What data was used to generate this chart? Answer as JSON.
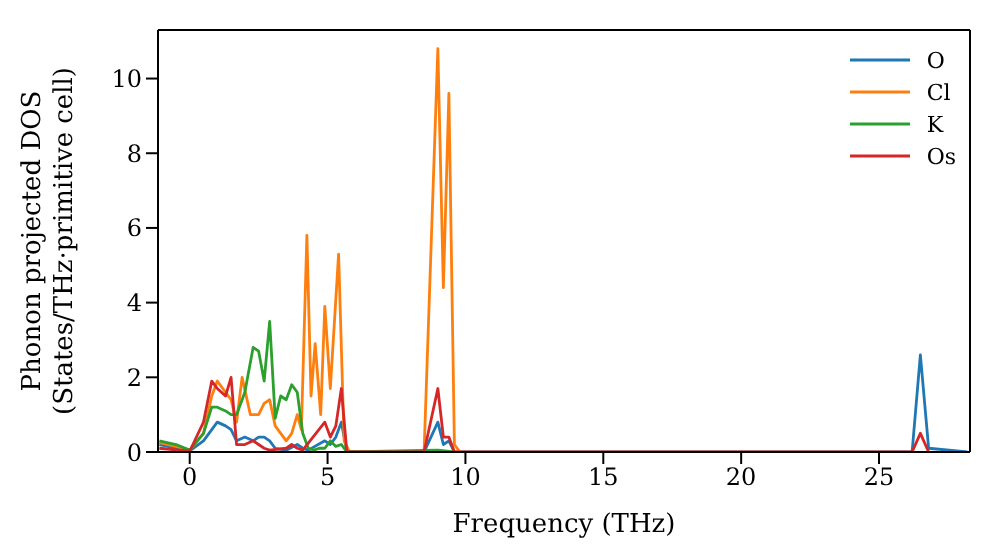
{
  "chart_data": {
    "type": "line",
    "xlabel": "Frequency (THz)",
    "ylabel": "Phonon projected DOS\n(States/THz·primitive cell)",
    "xlim": [
      -1.15,
      28.3
    ],
    "ylim": [
      0,
      11.3
    ],
    "xticks": [
      0,
      5,
      10,
      15,
      20,
      25
    ],
    "yticks": [
      0,
      2,
      4,
      6,
      8,
      10
    ],
    "legend": "top right",
    "series": [
      {
        "name": "O",
        "color": "#1f77b4",
        "x": [
          -1.1,
          0,
          0.5,
          0.8,
          1,
          1.3,
          1.5,
          1.7,
          2,
          2.3,
          2.5,
          2.7,
          2.9,
          3.1,
          3.5,
          3.9,
          4.1,
          4.3,
          4.9,
          5.1,
          5.3,
          5.5,
          5.7,
          8.5,
          9,
          9.2,
          9.4,
          9.6,
          26.2,
          26.5,
          26.8,
          28.2
        ],
        "values": [
          0.2,
          0.03,
          0.3,
          0.6,
          0.8,
          0.7,
          0.6,
          0.3,
          0.4,
          0.3,
          0.4,
          0.4,
          0.3,
          0.1,
          0.05,
          0.2,
          0.1,
          0.05,
          0.3,
          0.2,
          0.4,
          0.8,
          0,
          0,
          0.8,
          0.2,
          0.3,
          0,
          0,
          2.6,
          0.1,
          0
        ]
      },
      {
        "name": "Cl",
        "color": "#ff7f0e",
        "x": [
          -1.1,
          -0.5,
          0,
          0.5,
          0.8,
          1,
          1.3,
          1.5,
          1.7,
          1.9,
          2.2,
          2.5,
          2.7,
          2.9,
          3.1,
          3.3,
          3.5,
          3.7,
          3.9,
          4.05,
          4.25,
          4.4,
          4.55,
          4.75,
          4.9,
          5.1,
          5.4,
          5.6,
          5.8,
          8.5,
          9,
          9.2,
          9.4,
          9.6,
          9.8
        ],
        "values": [
          0.25,
          0.15,
          0.05,
          0.5,
          1.5,
          1.9,
          1.6,
          1.4,
          0.8,
          2,
          1,
          1,
          1.3,
          1.4,
          0.7,
          0.5,
          0.3,
          0.5,
          1,
          0.6,
          5.8,
          1.5,
          2.9,
          1,
          3.9,
          1.7,
          5.3,
          0.3,
          0,
          0,
          10.8,
          4.4,
          9.6,
          0.2,
          0
        ]
      },
      {
        "name": "K",
        "color": "#2ca02c",
        "x": [
          -1.1,
          -0.5,
          0,
          0.5,
          0.8,
          1,
          1.3,
          1.5,
          1.7,
          2,
          2.3,
          2.5,
          2.7,
          2.9,
          3.1,
          3.3,
          3.5,
          3.7,
          3.9,
          4.1,
          4.3,
          4.5,
          4.7,
          4.9,
          5.1,
          5.3,
          5.5,
          5.7,
          9,
          9.6
        ],
        "values": [
          0.3,
          0.2,
          0.05,
          0.5,
          1.2,
          1.2,
          1.1,
          1,
          1,
          1.6,
          2.8,
          2.7,
          1.9,
          3.5,
          0.9,
          1.5,
          1.4,
          1.8,
          1.6,
          0.5,
          0.1,
          0.05,
          0.1,
          0.1,
          0.3,
          0.15,
          0.2,
          0,
          0.05,
          0
        ]
      },
      {
        "name": "Os",
        "color": "#d62728",
        "x": [
          -1.1,
          0,
          0.5,
          0.8,
          1,
          1.3,
          1.5,
          1.7,
          2,
          2.3,
          2.5,
          2.7,
          2.9,
          3.5,
          3.7,
          3.9,
          4.1,
          4.9,
          5.1,
          5.3,
          5.5,
          5.7,
          8.5,
          9,
          9.2,
          9.4,
          9.6,
          26.2,
          26.5,
          26.8
        ],
        "values": [
          0.1,
          0.02,
          0.8,
          1.9,
          1.7,
          1.5,
          2,
          0.2,
          0.2,
          0.3,
          0.2,
          0.1,
          0.05,
          0.1,
          0.2,
          0.1,
          0.05,
          0.8,
          0.4,
          0.7,
          1.7,
          0,
          0,
          1.7,
          0.4,
          0.4,
          0,
          0,
          0.5,
          0
        ]
      }
    ]
  }
}
